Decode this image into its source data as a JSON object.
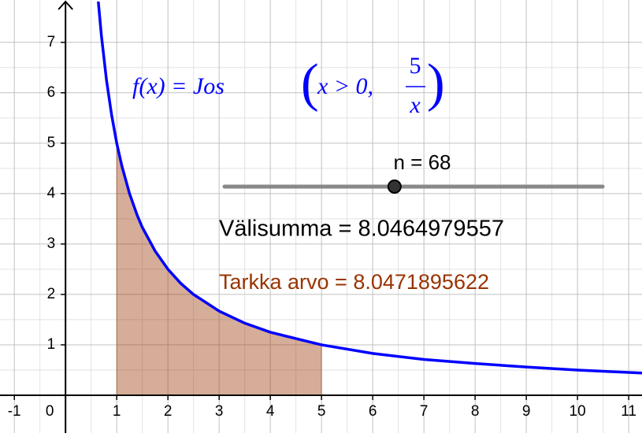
{
  "chart_data": {
    "type": "function-plot",
    "xlim": [
      -1.28,
      11.26
    ],
    "ylim": [
      -0.75,
      7.84
    ],
    "xticks": [
      -1,
      0,
      1,
      2,
      3,
      4,
      5,
      6,
      7,
      8,
      9,
      10,
      11
    ],
    "yticks": [
      1,
      2,
      3,
      4,
      5,
      6,
      7
    ],
    "grid": true,
    "minor_grid": true,
    "series": [
      {
        "type": "area",
        "color": "#993300",
        "x": [
          1,
          1.25,
          1.5,
          1.75,
          2,
          2.5,
          3,
          3.5,
          4,
          4.5,
          5
        ],
        "values": [
          5,
          4,
          3.33,
          2.86,
          2.5,
          2,
          1.67,
          1.43,
          1.25,
          1.11,
          1
        ]
      },
      {
        "type": "line",
        "color": "#0000ff",
        "x": [
          0.64,
          0.7,
          0.8,
          0.9,
          1,
          1.1,
          1.25,
          1.4,
          1.5,
          1.75,
          2,
          2.25,
          2.5,
          3,
          3.5,
          4,
          5,
          6,
          7,
          8,
          9,
          10,
          11.26
        ],
        "values": [
          7.81,
          7.14,
          6.25,
          5.56,
          5,
          4.55,
          4,
          3.57,
          3.33,
          2.86,
          2.5,
          2.22,
          2,
          1.67,
          1.43,
          1.25,
          1,
          0.83,
          0.71,
          0.63,
          0.56,
          0.5,
          0.44
        ]
      }
    ],
    "formula": {
      "lhs": "f(x) = Jos",
      "condition": "x > 0,",
      "numerator": "5",
      "denominator": "x"
    },
    "slider": {
      "label": "n = 68",
      "value": 68,
      "min": 1,
      "max": 150
    },
    "partial_sum": "Välisumma = 8.0464979557",
    "exact_value": "Tarkka arvo = 8.0471895622"
  }
}
